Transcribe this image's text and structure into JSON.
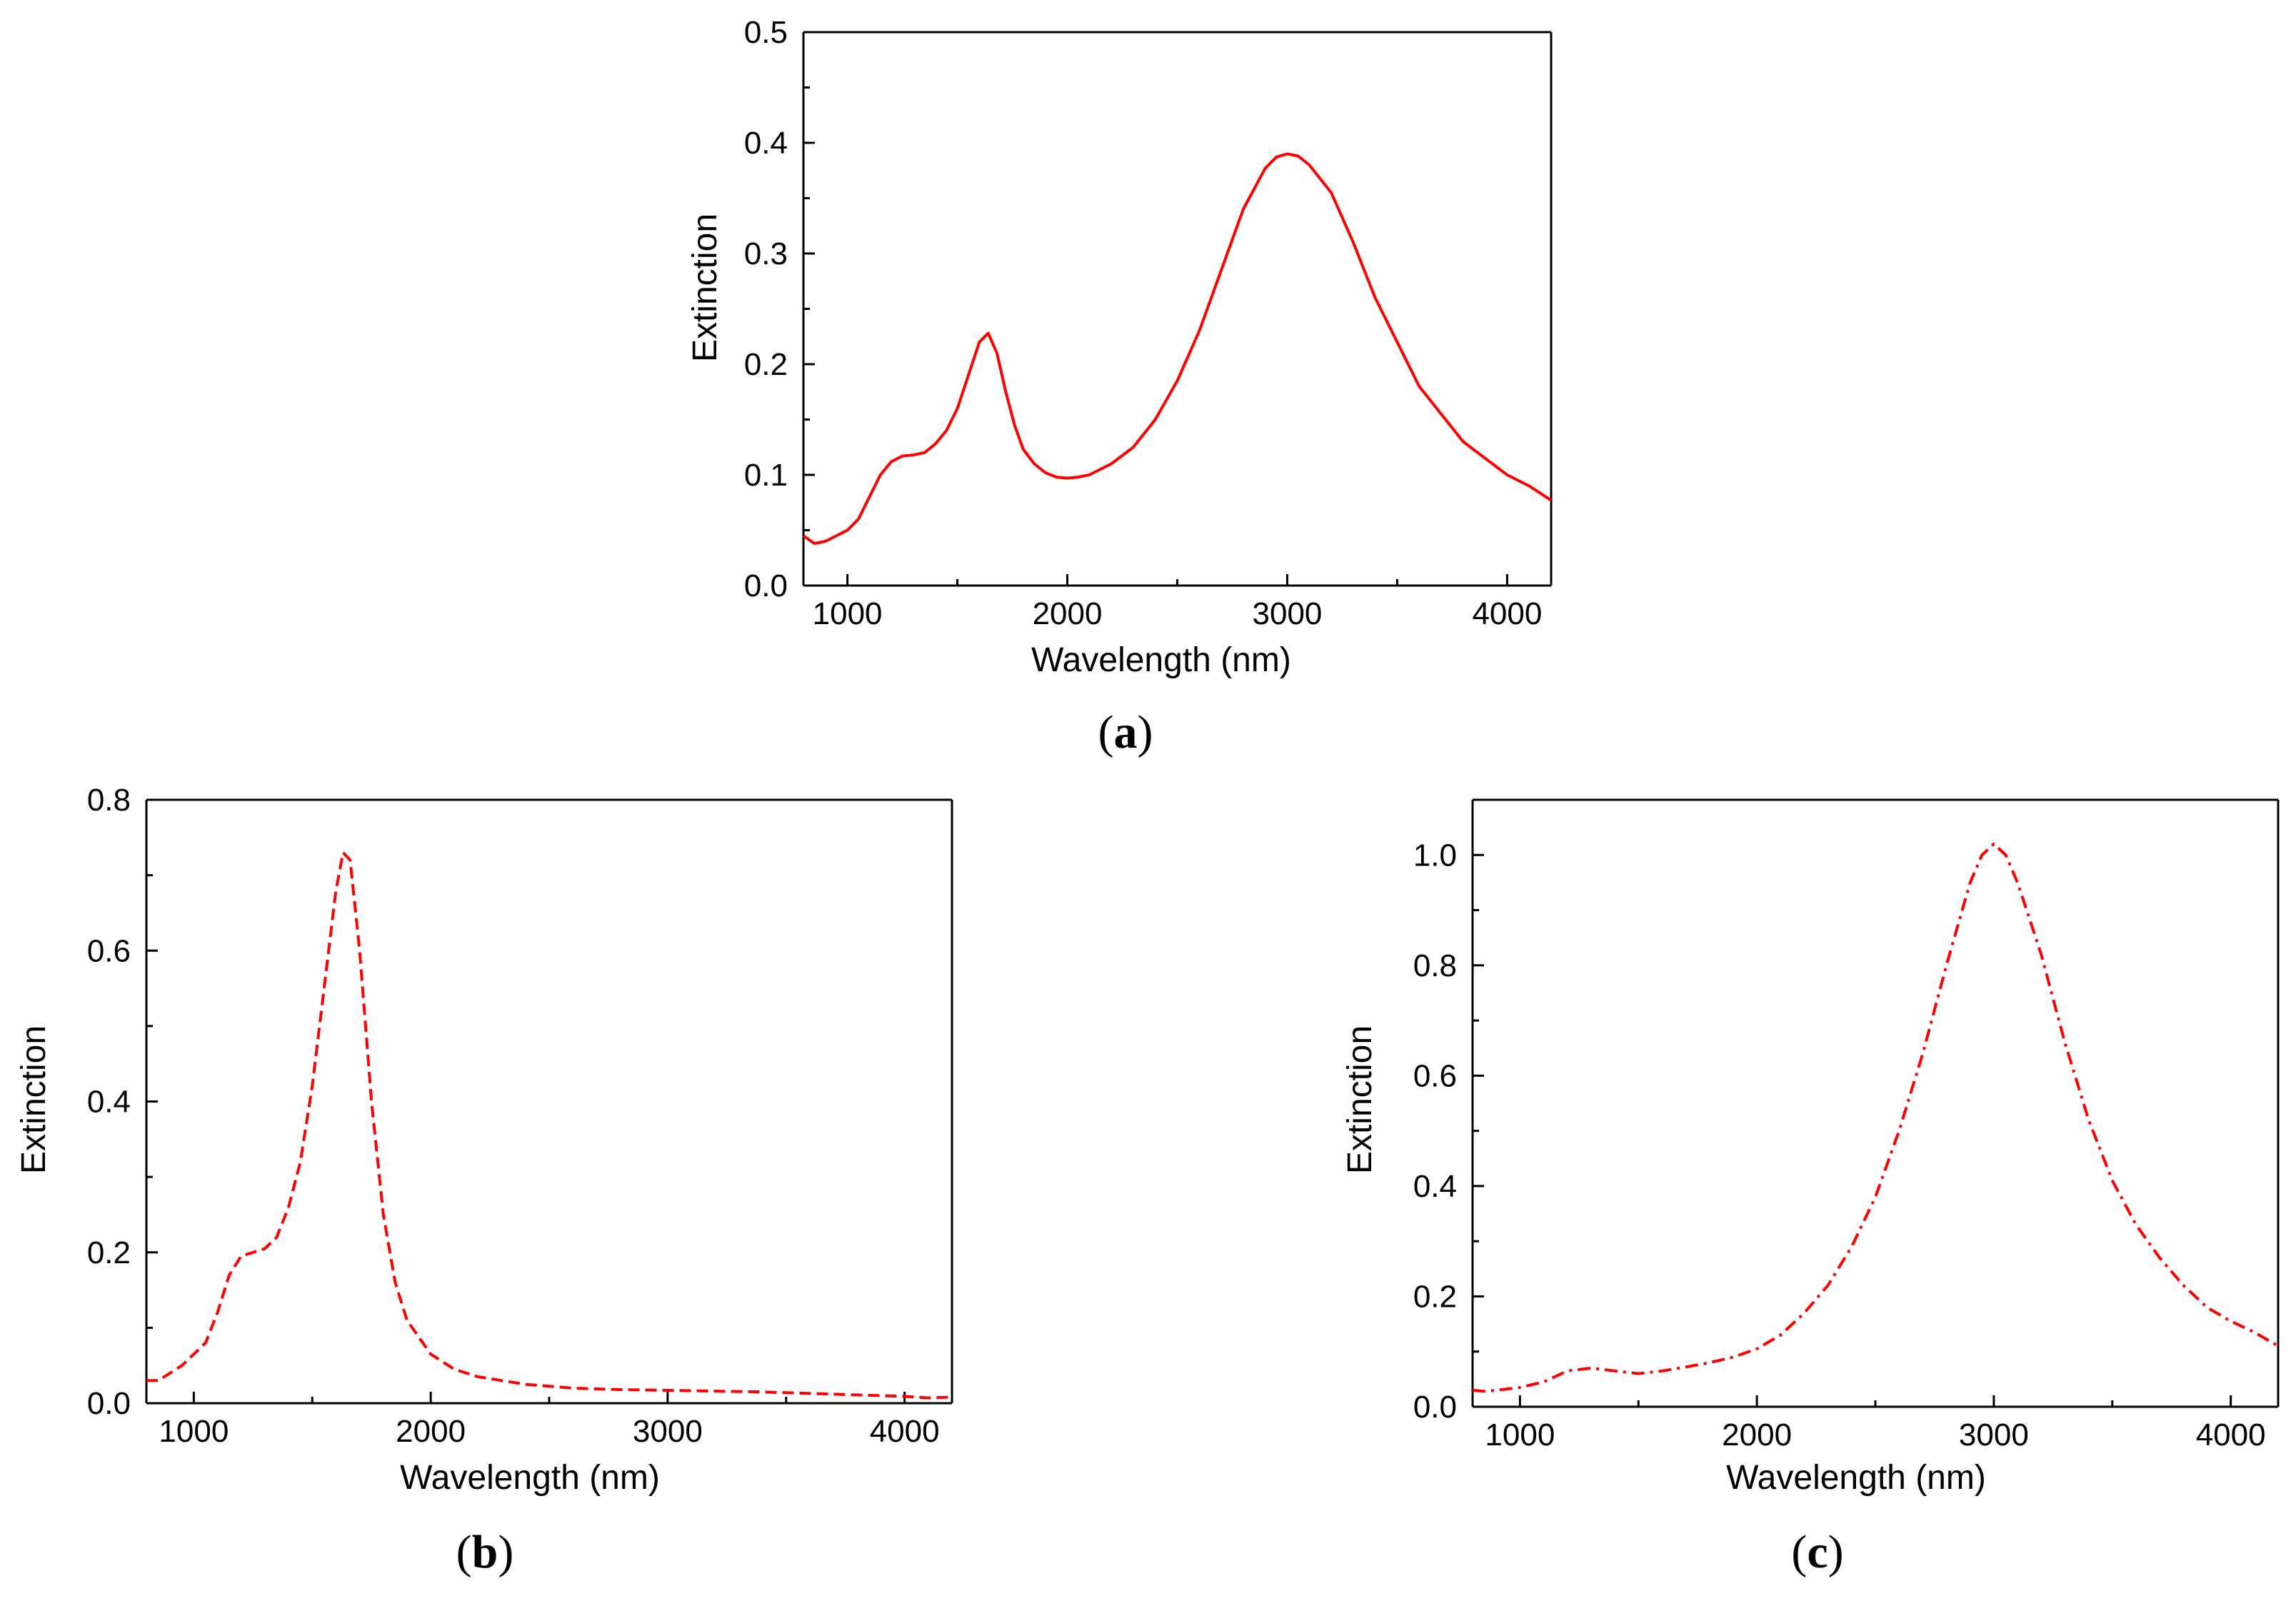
{
  "chart_data": [
    {
      "type": "line",
      "panel": "a",
      "caption_letter": "a",
      "xlabel": "Wavelength (nm)",
      "ylabel": "Extinction",
      "xlim": [
        800,
        4200
      ],
      "ylim": [
        0,
        0.5
      ],
      "xticks": [
        1000,
        2000,
        3000,
        4000
      ],
      "xtick_labels": [
        "1000",
        "2000",
        "3000",
        "4000"
      ],
      "yticks": [
        0.0,
        0.1,
        0.2,
        0.3,
        0.4,
        0.5
      ],
      "ytick_labels": [
        "0.0",
        "0.1",
        "0.2",
        "0.3",
        "0.4",
        "0.5"
      ],
      "line_style": "solid",
      "color": "#ff0000",
      "series": [
        {
          "name": "Extinction",
          "x": [
            800,
            850,
            900,
            950,
            1000,
            1050,
            1100,
            1150,
            1200,
            1250,
            1300,
            1350,
            1400,
            1450,
            1500,
            1550,
            1600,
            1640,
            1680,
            1720,
            1760,
            1800,
            1850,
            1900,
            1950,
            2000,
            2050,
            2100,
            2200,
            2300,
            2400,
            2500,
            2600,
            2700,
            2800,
            2900,
            2950,
            3000,
            3050,
            3100,
            3200,
            3300,
            3400,
            3500,
            3600,
            3700,
            3800,
            3900,
            4000,
            4100,
            4200
          ],
          "y": [
            0.045,
            0.038,
            0.04,
            0.045,
            0.05,
            0.06,
            0.08,
            0.1,
            0.112,
            0.117,
            0.118,
            0.12,
            0.128,
            0.14,
            0.16,
            0.19,
            0.22,
            0.228,
            0.21,
            0.175,
            0.145,
            0.123,
            0.11,
            0.102,
            0.098,
            0.097,
            0.098,
            0.1,
            0.11,
            0.125,
            0.15,
            0.185,
            0.23,
            0.285,
            0.34,
            0.377,
            0.387,
            0.39,
            0.388,
            0.38,
            0.355,
            0.31,
            0.26,
            0.22,
            0.18,
            0.155,
            0.13,
            0.115,
            0.1,
            0.09,
            0.077
          ]
        }
      ]
    },
    {
      "type": "line",
      "panel": "b",
      "caption_letter": "b",
      "xlabel": "Wavelength (nm)",
      "ylabel": "Extinction",
      "xlim": [
        800,
        4200
      ],
      "ylim": [
        0,
        0.8
      ],
      "xticks": [
        1000,
        2000,
        3000,
        4000
      ],
      "xtick_labels": [
        "1000",
        "2000",
        "3000",
        "4000"
      ],
      "yticks": [
        0.0,
        0.2,
        0.4,
        0.6,
        0.8
      ],
      "ytick_labels": [
        "0.0",
        "0.2",
        "0.4",
        "0.6",
        "0.8"
      ],
      "line_style": "dashed",
      "color": "#ff0000",
      "series": [
        {
          "name": "Extinction",
          "x": [
            800,
            850,
            900,
            950,
            1000,
            1050,
            1100,
            1150,
            1200,
            1250,
            1300,
            1350,
            1400,
            1450,
            1500,
            1550,
            1600,
            1630,
            1660,
            1700,
            1750,
            1800,
            1850,
            1900,
            2000,
            2100,
            2200,
            2400,
            2600,
            2800,
            3000,
            3200,
            3400,
            3600,
            3800,
            4000,
            4100,
            4200
          ],
          "y": [
            0.03,
            0.03,
            0.04,
            0.05,
            0.065,
            0.08,
            0.12,
            0.17,
            0.195,
            0.2,
            0.205,
            0.22,
            0.26,
            0.32,
            0.42,
            0.55,
            0.68,
            0.73,
            0.72,
            0.6,
            0.4,
            0.25,
            0.16,
            0.11,
            0.065,
            0.045,
            0.035,
            0.025,
            0.02,
            0.018,
            0.017,
            0.016,
            0.015,
            0.013,
            0.011,
            0.009,
            0.007,
            0.008
          ]
        }
      ]
    },
    {
      "type": "line",
      "panel": "c",
      "caption_letter": "c",
      "xlabel": "Wavelength (nm)",
      "ylabel": "Extinction",
      "xlim": [
        800,
        4200
      ],
      "ylim": [
        0,
        1.1
      ],
      "xticks": [
        1000,
        2000,
        3000,
        4000
      ],
      "xtick_labels": [
        "1000",
        "2000",
        "3000",
        "4000"
      ],
      "yticks": [
        0.0,
        0.2,
        0.4,
        0.6,
        0.8,
        1.0
      ],
      "ytick_labels": [
        "0.0",
        "0.2",
        "0.4",
        "0.6",
        "0.8",
        "1.0"
      ],
      "line_style": "dashdot",
      "color": "#ff0000",
      "series": [
        {
          "name": "Extinction",
          "x": [
            800,
            850,
            900,
            1000,
            1100,
            1200,
            1300,
            1400,
            1500,
            1600,
            1700,
            1800,
            1900,
            2000,
            2100,
            2200,
            2300,
            2400,
            2500,
            2600,
            2700,
            2800,
            2900,
            2950,
            3000,
            3050,
            3100,
            3200,
            3300,
            3400,
            3500,
            3600,
            3700,
            3800,
            3900,
            4000,
            4100,
            4200
          ],
          "y": [
            0.03,
            0.028,
            0.03,
            0.035,
            0.045,
            0.065,
            0.07,
            0.065,
            0.06,
            0.065,
            0.072,
            0.08,
            0.09,
            0.105,
            0.13,
            0.17,
            0.22,
            0.29,
            0.38,
            0.5,
            0.64,
            0.8,
            0.95,
            1.0,
            1.02,
            1.0,
            0.95,
            0.82,
            0.66,
            0.52,
            0.41,
            0.33,
            0.27,
            0.22,
            0.18,
            0.155,
            0.135,
            0.11
          ]
        }
      ]
    }
  ]
}
